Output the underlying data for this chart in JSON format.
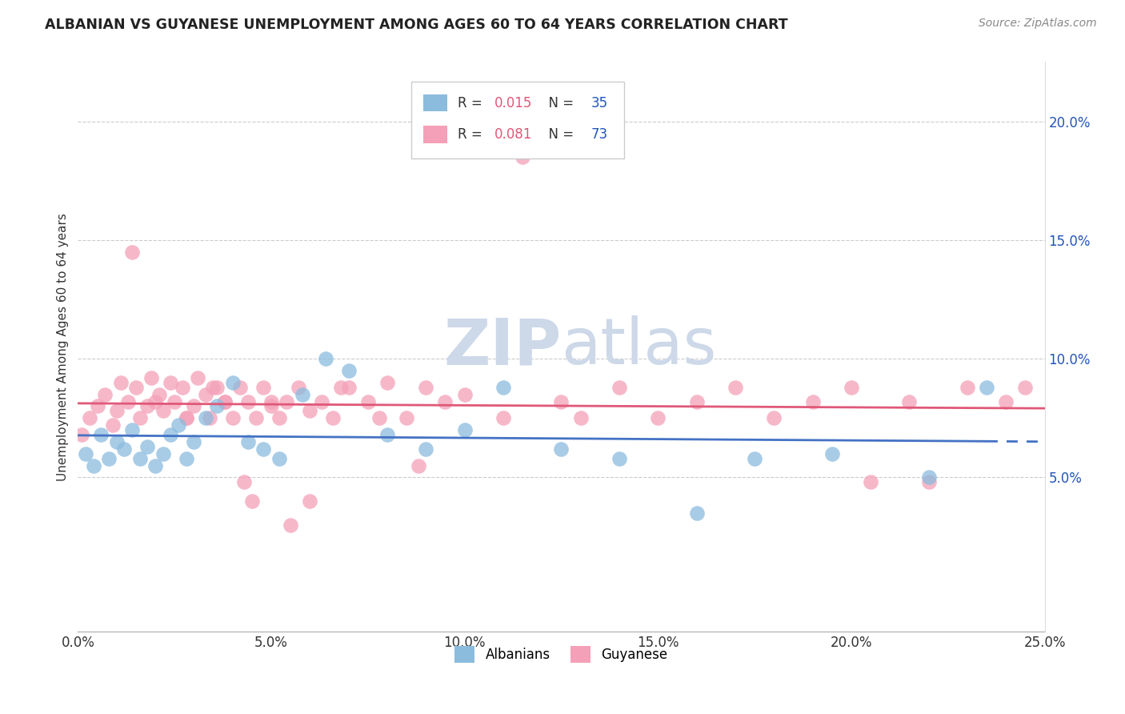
{
  "title": "ALBANIAN VS GUYANESE UNEMPLOYMENT AMONG AGES 60 TO 64 YEARS CORRELATION CHART",
  "source": "Source: ZipAtlas.com",
  "ylabel": "Unemployment Among Ages 60 to 64 years",
  "xlim": [
    0.0,
    0.25
  ],
  "ylim": [
    -0.015,
    0.225
  ],
  "xtick_vals": [
    0.0,
    0.05,
    0.1,
    0.15,
    0.2,
    0.25
  ],
  "xtick_labels": [
    "0.0%",
    "5.0%",
    "10.0%",
    "15.0%",
    "20.0%",
    "25.0%"
  ],
  "ytick_vals": [
    0.05,
    0.1,
    0.15,
    0.2
  ],
  "ytick_labels": [
    "5.0%",
    "10.0%",
    "15.0%",
    "20.0%"
  ],
  "albanians_color": "#8bbcde",
  "guyanese_color": "#f4a0b8",
  "albanians_line_color": "#4472c4",
  "guyanese_line_color": "#e05878",
  "albanians_R": 0.015,
  "albanians_N": 35,
  "guyanese_R": 0.081,
  "guyanese_N": 73,
  "legend_R_color": "#e05878",
  "legend_N_color": "#2255bb",
  "watermark_color": "#cdd8e8",
  "background_color": "#ffffff",
  "grid_color": "#cccccc",
  "albanians_x": [
    0.002,
    0.004,
    0.006,
    0.008,
    0.01,
    0.012,
    0.014,
    0.016,
    0.018,
    0.02,
    0.022,
    0.024,
    0.026,
    0.028,
    0.03,
    0.033,
    0.036,
    0.04,
    0.044,
    0.048,
    0.052,
    0.058,
    0.064,
    0.07,
    0.08,
    0.09,
    0.1,
    0.11,
    0.125,
    0.14,
    0.16,
    0.175,
    0.195,
    0.22,
    0.235
  ],
  "albanians_y": [
    0.06,
    0.055,
    0.068,
    0.058,
    0.065,
    0.062,
    0.07,
    0.058,
    0.063,
    0.055,
    0.06,
    0.068,
    0.072,
    0.058,
    0.065,
    0.075,
    0.08,
    0.09,
    0.065,
    0.062,
    0.058,
    0.085,
    0.1,
    0.095,
    0.068,
    0.062,
    0.07,
    0.088,
    0.062,
    0.058,
    0.035,
    0.058,
    0.06,
    0.05,
    0.088
  ],
  "guyanese_x": [
    0.001,
    0.003,
    0.005,
    0.007,
    0.009,
    0.01,
    0.011,
    0.013,
    0.015,
    0.016,
    0.018,
    0.019,
    0.021,
    0.022,
    0.024,
    0.025,
    0.027,
    0.028,
    0.03,
    0.031,
    0.033,
    0.034,
    0.036,
    0.038,
    0.04,
    0.042,
    0.044,
    0.046,
    0.048,
    0.05,
    0.052,
    0.054,
    0.057,
    0.06,
    0.063,
    0.066,
    0.07,
    0.075,
    0.08,
    0.085,
    0.09,
    0.095,
    0.1,
    0.11,
    0.115,
    0.125,
    0.13,
    0.14,
    0.15,
    0.16,
    0.17,
    0.18,
    0.19,
    0.2,
    0.205,
    0.215,
    0.22,
    0.23,
    0.24,
    0.245,
    0.014,
    0.02,
    0.028,
    0.035,
    0.043,
    0.05,
    0.06,
    0.068,
    0.078,
    0.088,
    0.038,
    0.045,
    0.055
  ],
  "guyanese_y": [
    0.068,
    0.075,
    0.08,
    0.085,
    0.072,
    0.078,
    0.09,
    0.082,
    0.088,
    0.075,
    0.08,
    0.092,
    0.085,
    0.078,
    0.09,
    0.082,
    0.088,
    0.075,
    0.08,
    0.092,
    0.085,
    0.075,
    0.088,
    0.082,
    0.075,
    0.088,
    0.082,
    0.075,
    0.088,
    0.08,
    0.075,
    0.082,
    0.088,
    0.078,
    0.082,
    0.075,
    0.088,
    0.082,
    0.09,
    0.075,
    0.088,
    0.082,
    0.085,
    0.075,
    0.185,
    0.082,
    0.075,
    0.088,
    0.075,
    0.082,
    0.088,
    0.075,
    0.082,
    0.088,
    0.048,
    0.082,
    0.048,
    0.088,
    0.082,
    0.088,
    0.145,
    0.082,
    0.075,
    0.088,
    0.048,
    0.082,
    0.04,
    0.088,
    0.075,
    0.055,
    0.082,
    0.04,
    0.03
  ]
}
